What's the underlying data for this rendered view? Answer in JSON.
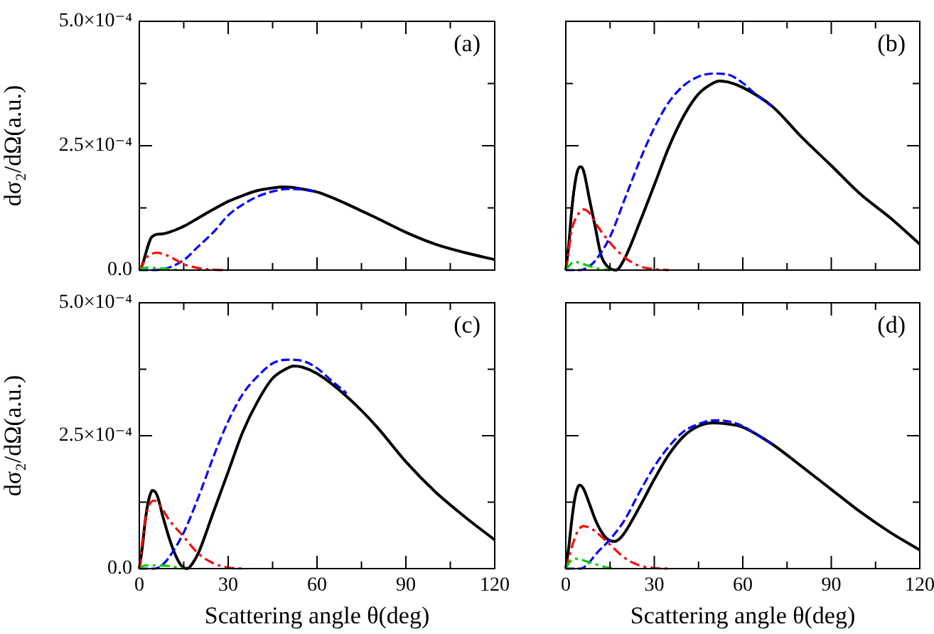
{
  "chart_data": [
    {
      "type": "line",
      "ylabel": "dσ₂/dΩ(a.u.)",
      "annotations": [
        "(a)"
      ],
      "tick_labels": "y",
      "grid": false,
      "legend": false,
      "xlim": [
        0,
        120
      ],
      "xticks": [
        0,
        {
          "value": 15,
          "label": null
        },
        30,
        {
          "value": 45,
          "label": null
        },
        60,
        {
          "value": 75,
          "label": null
        },
        90,
        {
          "value": 105,
          "label": null
        },
        120
      ],
      "ylim": [
        0,
        0.0005
      ],
      "yticks": [
        {
          "value": 0,
          "label": "0.0"
        },
        {
          "value": 0.000125,
          "label": null
        },
        {
          "value": 0.00025,
          "label": "2.5×10⁻⁴"
        },
        {
          "value": 0.000375,
          "label": null
        },
        {
          "value": 0.0005,
          "label": "5.0×10⁻⁴"
        }
      ],
      "series": [
        {
          "color": "#000000",
          "line_style": "solid",
          "x": [
            0,
            1,
            2,
            3,
            4,
            5,
            6,
            8,
            10,
            15,
            20,
            25,
            30,
            35,
            40,
            45,
            49,
            55,
            60,
            65,
            70,
            75,
            80,
            90,
            100,
            110,
            120
          ],
          "values": [
            0,
            1e-05,
            3e-05,
            5e-05,
            6.5e-05,
            7e-05,
            7.2e-05,
            7.3e-05,
            7.6e-05,
            8.8e-05,
            0.000105,
            0.000122,
            0.000138,
            0.00015,
            0.00016,
            0.000165,
            0.000167,
            0.000163,
            0.000157,
            0.000146,
            0.000133,
            0.000119,
            0.000105,
            7.6e-05,
            5.2e-05,
            3.5e-05,
            2.1e-05
          ]
        },
        {
          "color": "#0000ff",
          "line_style": "dashed",
          "x": [
            0,
            5,
            8,
            10,
            15,
            20,
            25,
            30,
            35,
            40,
            45,
            50,
            55,
            60
          ],
          "values": [
            0,
            0,
            2e-06,
            5e-06,
            2e-05,
            4.8e-05,
            7.6e-05,
            0.00011,
            0.000132,
            0.000148,
            0.000158,
            0.000163,
            0.000162,
            0.000157
          ]
        },
        {
          "color": "#ff0000",
          "line_style": "dashdot",
          "x": [
            0,
            1,
            2,
            4,
            6,
            8,
            10,
            15,
            20,
            25,
            30
          ],
          "values": [
            0,
            1e-05,
            2.2e-05,
            3.2e-05,
            3.5e-05,
            3.2e-05,
            2.8e-05,
            1.2e-05,
            4e-06,
            1e-06,
            0
          ]
        },
        {
          "color": "#00cc00",
          "line_style": "dashdot",
          "x": [
            0,
            1,
            3,
            6,
            10,
            14
          ],
          "values": [
            0,
            4e-06,
            5e-06,
            4e-06,
            2e-06,
            0
          ]
        }
      ]
    },
    {
      "type": "line",
      "annotations": [
        "(b)"
      ],
      "tick_labels": false,
      "grid": false,
      "legend": false,
      "xlim": [
        0,
        120
      ],
      "xticks": [
        0,
        {
          "value": 15,
          "label": null
        },
        30,
        {
          "value": 45,
          "label": null
        },
        60,
        {
          "value": 75,
          "label": null
        },
        90,
        {
          "value": 105,
          "label": null
        },
        120
      ],
      "ylim": [
        0,
        0.0005
      ],
      "yticks": [
        0,
        {
          "value": 0.000125,
          "label": null
        },
        0.00025,
        {
          "value": 0.000375,
          "label": null
        },
        0.0005
      ],
      "series": [
        {
          "color": "#000000",
          "line_style": "solid",
          "x": [
            0,
            1,
            2,
            3,
            4,
            5,
            6,
            8,
            10,
            12,
            14,
            17,
            20,
            25,
            30,
            35,
            40,
            45,
            50,
            52,
            55,
            60,
            70,
            80,
            90,
            100,
            110,
            120
          ],
          "values": [
            0,
            5e-05,
            0.00012,
            0.00017,
            0.0002,
            0.000208,
            0.0002,
            0.000143,
            8.6e-05,
            2.9e-05,
            8e-06,
            0,
            2.4e-05,
            9.5e-05,
            0.000171,
            0.000248,
            0.00031,
            0.000354,
            0.000376,
            0.00038,
            0.000378,
            0.000367,
            0.000329,
            0.000267,
            0.00021,
            0.000152,
            0.000105,
            5.2e-05
          ]
        },
        {
          "color": "#0000ff",
          "line_style": "dashed",
          "x": [
            0,
            5,
            8,
            10,
            15,
            20,
            25,
            30,
            35,
            40,
            45,
            50,
            55,
            60,
            65,
            70
          ],
          "values": [
            0,
            0,
            8e-06,
            1.9e-05,
            6.7e-05,
            0.000143,
            0.000219,
            0.000286,
            0.000338,
            0.000371,
            0.000389,
            0.000395,
            0.000393,
            0.000376,
            0.00035,
            0.000329
          ]
        },
        {
          "color": "#ff0000",
          "line_style": "dashdot",
          "x": [
            0,
            1,
            2,
            4,
            6,
            8,
            10,
            15,
            20,
            25,
            30,
            35
          ],
          "values": [
            0,
            4e-05,
            8e-05,
            0.00011,
            0.000122,
            0.000115,
            9.5e-05,
            5.5e-05,
            2.5e-05,
            8e-06,
            2e-06,
            0
          ]
        },
        {
          "color": "#00cc00",
          "line_style": "dashdot",
          "x": [
            0,
            1,
            3,
            5,
            8,
            12,
            15
          ],
          "values": [
            0,
            8e-06,
            1.7e-05,
            1.4e-05,
            8e-06,
            2e-06,
            0
          ]
        }
      ]
    },
    {
      "type": "line",
      "xlabel": "Scattering angle θ(deg)",
      "ylabel": "dσ₂/dΩ(a.u.)",
      "annotations": [
        "(c)"
      ],
      "grid": false,
      "legend": false,
      "xlim": [
        0,
        120
      ],
      "xticks": [
        0,
        {
          "value": 15,
          "label": null
        },
        30,
        {
          "value": 45,
          "label": null
        },
        60,
        {
          "value": 75,
          "label": null
        },
        90,
        {
          "value": 105,
          "label": null
        },
        120
      ],
      "ylim": [
        0,
        0.0005
      ],
      "yticks": [
        {
          "value": 0,
          "label": "0.0"
        },
        {
          "value": 0.000125,
          "label": null
        },
        {
          "value": 0.00025,
          "label": "2.5×10⁻⁴"
        },
        {
          "value": 0.000375,
          "label": null
        },
        {
          "value": 0.0005,
          "label": "5.0×10⁻⁴"
        }
      ],
      "series": [
        {
          "color": "#000000",
          "line_style": "solid",
          "x": [
            0,
            1,
            2,
            3,
            4,
            4.5,
            6,
            8,
            10,
            12,
            14,
            16.2,
            18,
            20,
            25,
            30,
            35,
            40,
            45,
            50,
            52,
            55,
            60,
            70,
            80,
            90,
            100,
            110,
            120
          ],
          "values": [
            0,
            4e-05,
            9e-05,
            0.000125,
            0.000144,
            0.000147,
            0.000138,
            9.7e-05,
            5.9e-05,
            2.8e-05,
            7e-06,
            0,
            1e-05,
            3e-05,
            0.000106,
            0.000182,
            0.000258,
            0.000315,
            0.000358,
            0.000377,
            0.000381,
            0.000379,
            0.000367,
            0.000324,
            0.000268,
            0.000201,
            0.000144,
            9.7e-05,
            5.4e-05
          ]
        },
        {
          "color": "#0000ff",
          "line_style": "dashed",
          "x": [
            0,
            5,
            8,
            10,
            15,
            20,
            25,
            30,
            35,
            40,
            45,
            50,
            55,
            60,
            65,
            70
          ],
          "values": [
            0,
            0,
            8e-06,
            2.1e-05,
            6.8e-05,
            0.000135,
            0.00021,
            0.000277,
            0.000329,
            0.000362,
            0.000386,
            0.000393,
            0.000391,
            0.000377,
            0.000353,
            0.00033
          ]
        },
        {
          "color": "#ff0000",
          "line_style": "dashdot",
          "x": [
            0,
            1,
            2,
            3,
            5,
            8,
            10,
            15,
            20,
            25,
            30,
            35
          ],
          "values": [
            0,
            5e-05,
            9e-05,
            0.000115,
            0.000128,
            0.00011,
            9.2e-05,
            6e-05,
            2.8e-05,
            1e-05,
            2e-06,
            0
          ]
        },
        {
          "color": "#00cc00",
          "line_style": "dashdot",
          "x": [
            0,
            2,
            6,
            10,
            12,
            15
          ],
          "values": [
            0,
            6e-06,
            6e-06,
            5e-06,
            3e-06,
            0
          ]
        }
      ]
    },
    {
      "type": "line",
      "xlabel": "Scattering angle θ(deg)",
      "annotations": [
        "(d)"
      ],
      "tick_labels": "x",
      "grid": false,
      "legend": false,
      "xlim": [
        0,
        120
      ],
      "xticks": [
        0,
        {
          "value": 15,
          "label": null
        },
        30,
        {
          "value": 45,
          "label": null
        },
        60,
        {
          "value": 75,
          "label": null
        },
        90,
        {
          "value": 105,
          "label": null
        },
        120
      ],
      "ylim": [
        0,
        0.0005
      ],
      "yticks": [
        0,
        {
          "value": 0.000125,
          "label": null
        },
        0.00025,
        {
          "value": 0.000375,
          "label": null
        },
        0.0005
      ],
      "series": [
        {
          "color": "#000000",
          "line_style": "solid",
          "x": [
            0,
            1,
            2,
            3,
            4,
            4.7,
            6,
            8,
            10,
            12,
            14,
            16.4,
            18,
            20,
            25,
            30,
            35,
            40,
            45,
            50,
            55,
            60,
            70,
            80,
            90,
            100,
            110,
            120
          ],
          "values": [
            0,
            4e-05,
            9e-05,
            0.00013,
            0.000152,
            0.000157,
            0.00015,
            0.000122,
            9.2e-05,
            7e-05,
            5.6e-05,
            5.1e-05,
            5.5e-05,
            6.8e-05,
            0.000116,
            0.000168,
            0.000215,
            0.000249,
            0.000268,
            0.000274,
            0.000272,
            0.000266,
            0.000234,
            0.000192,
            0.000149,
            0.000106,
            6.8e-05,
            3.5e-05
          ]
        },
        {
          "color": "#0000ff",
          "line_style": "dashed",
          "x": [
            0,
            5,
            8,
            10,
            15,
            20,
            25,
            30,
            35,
            40,
            45,
            50,
            55,
            60,
            65,
            70
          ],
          "values": [
            0,
            0,
            1.2e-05,
            2.6e-05,
            5.5e-05,
            9.2e-05,
            0.000144,
            0.000192,
            0.00023,
            0.000258,
            0.000272,
            0.000279,
            0.000277,
            0.000268,
            0.000251,
            0.000234
          ]
        },
        {
          "color": "#ff0000",
          "line_style": "dashdot",
          "x": [
            0,
            1,
            2,
            4,
            6,
            8,
            10,
            15,
            20,
            25,
            30,
            35
          ],
          "values": [
            0,
            2e-05,
            4e-05,
            7e-05,
            8e-05,
            7.7e-05,
            7e-05,
            4.5e-05,
            2e-05,
            6e-06,
            1e-06,
            0
          ]
        },
        {
          "color": "#00cc00",
          "line_style": "dashdot",
          "x": [
            0,
            1,
            3,
            5,
            8,
            12,
            16
          ],
          "values": [
            0,
            1e-05,
            1.9e-05,
            1.7e-05,
            1.2e-05,
            5e-06,
            0
          ]
        }
      ]
    }
  ]
}
